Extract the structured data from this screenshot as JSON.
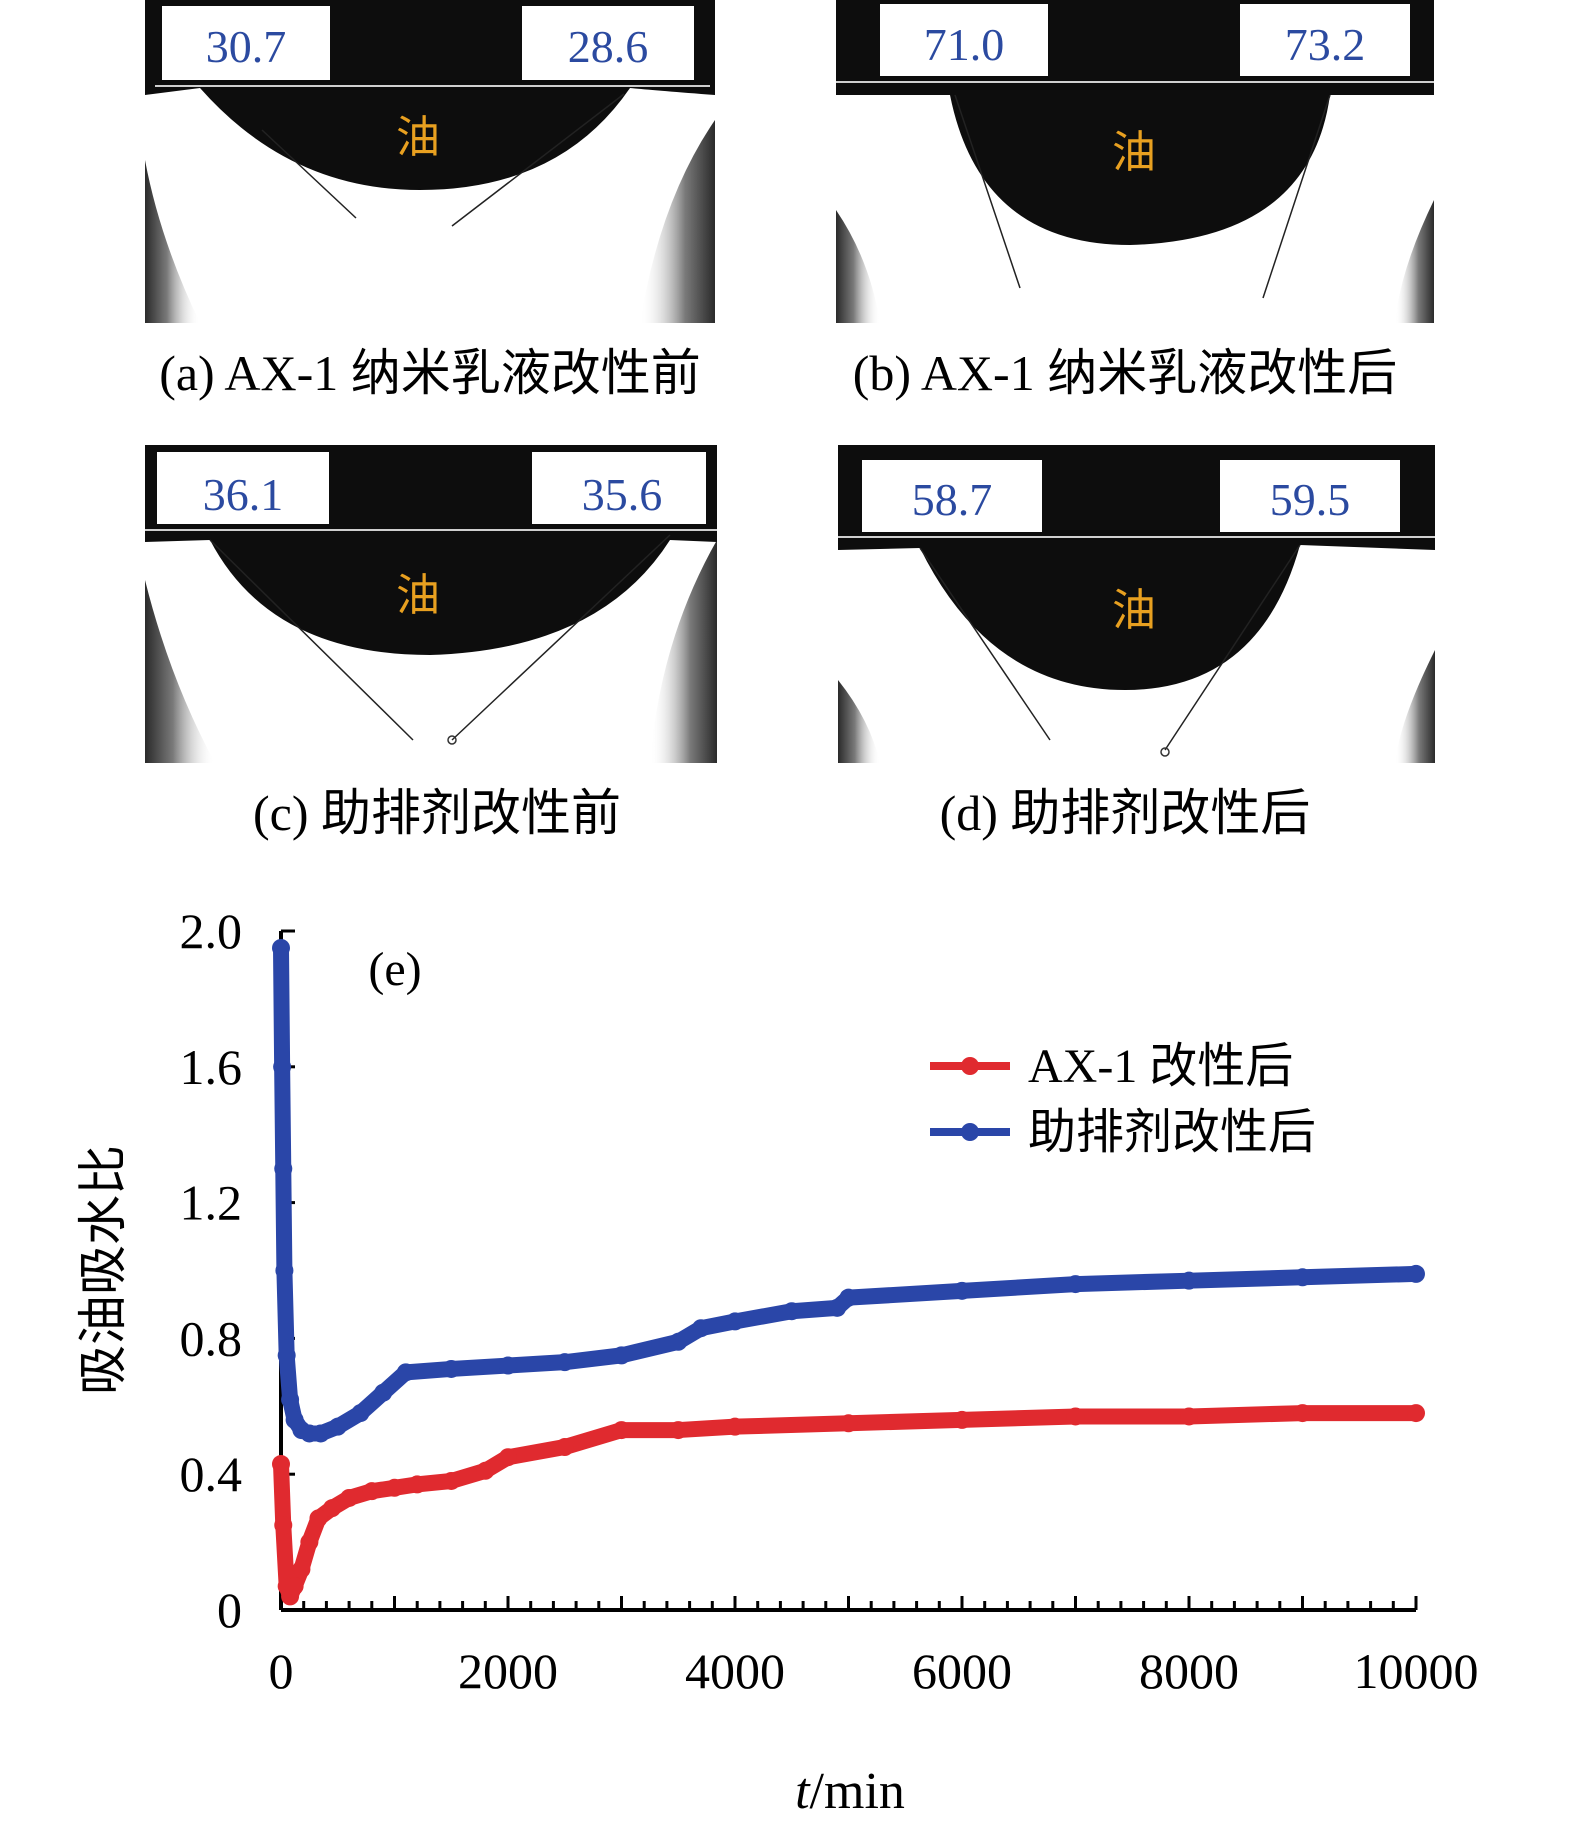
{
  "panels": [
    {
      "id": "a",
      "caption": "(a) AX-1 纳米乳液改性前",
      "left_angle": "30.7",
      "right_angle": "28.6",
      "phase_label": "油"
    },
    {
      "id": "b",
      "caption": "(b) AX-1 纳米乳液改性后",
      "left_angle": "71.0",
      "right_angle": "73.2",
      "phase_label": "油"
    },
    {
      "id": "c",
      "caption": "(c) 助排剂改性前",
      "left_angle": "36.1",
      "right_angle": "35.6",
      "phase_label": "油"
    },
    {
      "id": "d",
      "caption": "(d) 助排剂改性后",
      "left_angle": "58.7",
      "right_angle": "59.5",
      "phase_label": "油"
    }
  ],
  "colors": {
    "angle_text": "#2b4aa0",
    "oil_label": "#e8a020",
    "series_red": "#e02a2f",
    "series_blue": "#2a46a8"
  },
  "chart_data": {
    "type": "line",
    "panel_label": "(e)",
    "xlabel_italic": "t",
    "xlabel_unit": "/min",
    "ylabel": "吸油吸水比",
    "xlim": [
      0,
      10000
    ],
    "ylim": [
      0,
      2.0
    ],
    "xticks": [
      "0",
      "2000",
      "4000",
      "6000",
      "8000",
      "10000"
    ],
    "yticks": [
      "0",
      "0.4",
      "0.8",
      "1.2",
      "1.6",
      "2.0"
    ],
    "legend_position": "top-right",
    "grid": false,
    "series": [
      {
        "name": "AX-1 改性后",
        "color": "#e02a2f",
        "x": [
          0,
          20,
          50,
          80,
          120,
          180,
          250,
          330,
          450,
          600,
          800,
          1000,
          1200,
          1500,
          1800,
          2000,
          2500,
          3000,
          3500,
          4000,
          5000,
          6000,
          7000,
          8000,
          9000,
          10000
        ],
        "y": [
          0.43,
          0.25,
          0.07,
          0.04,
          0.07,
          0.12,
          0.2,
          0.27,
          0.3,
          0.33,
          0.35,
          0.36,
          0.37,
          0.38,
          0.41,
          0.45,
          0.48,
          0.53,
          0.53,
          0.54,
          0.55,
          0.56,
          0.57,
          0.57,
          0.58,
          0.58
        ]
      },
      {
        "name": "助排剂改性后",
        "color": "#2a46a8",
        "x": [
          0,
          10,
          20,
          30,
          50,
          80,
          120,
          180,
          250,
          350,
          500,
          700,
          900,
          1100,
          1500,
          2000,
          2500,
          3000,
          3500,
          3700,
          4000,
          4500,
          4900,
          5000,
          6000,
          7000,
          8000,
          9000,
          10000
        ],
        "y": [
          1.95,
          1.6,
          1.3,
          1.0,
          0.75,
          0.62,
          0.56,
          0.53,
          0.52,
          0.52,
          0.54,
          0.58,
          0.64,
          0.7,
          0.71,
          0.72,
          0.73,
          0.75,
          0.79,
          0.83,
          0.85,
          0.88,
          0.89,
          0.92,
          0.94,
          0.96,
          0.97,
          0.98,
          0.99
        ]
      }
    ]
  }
}
